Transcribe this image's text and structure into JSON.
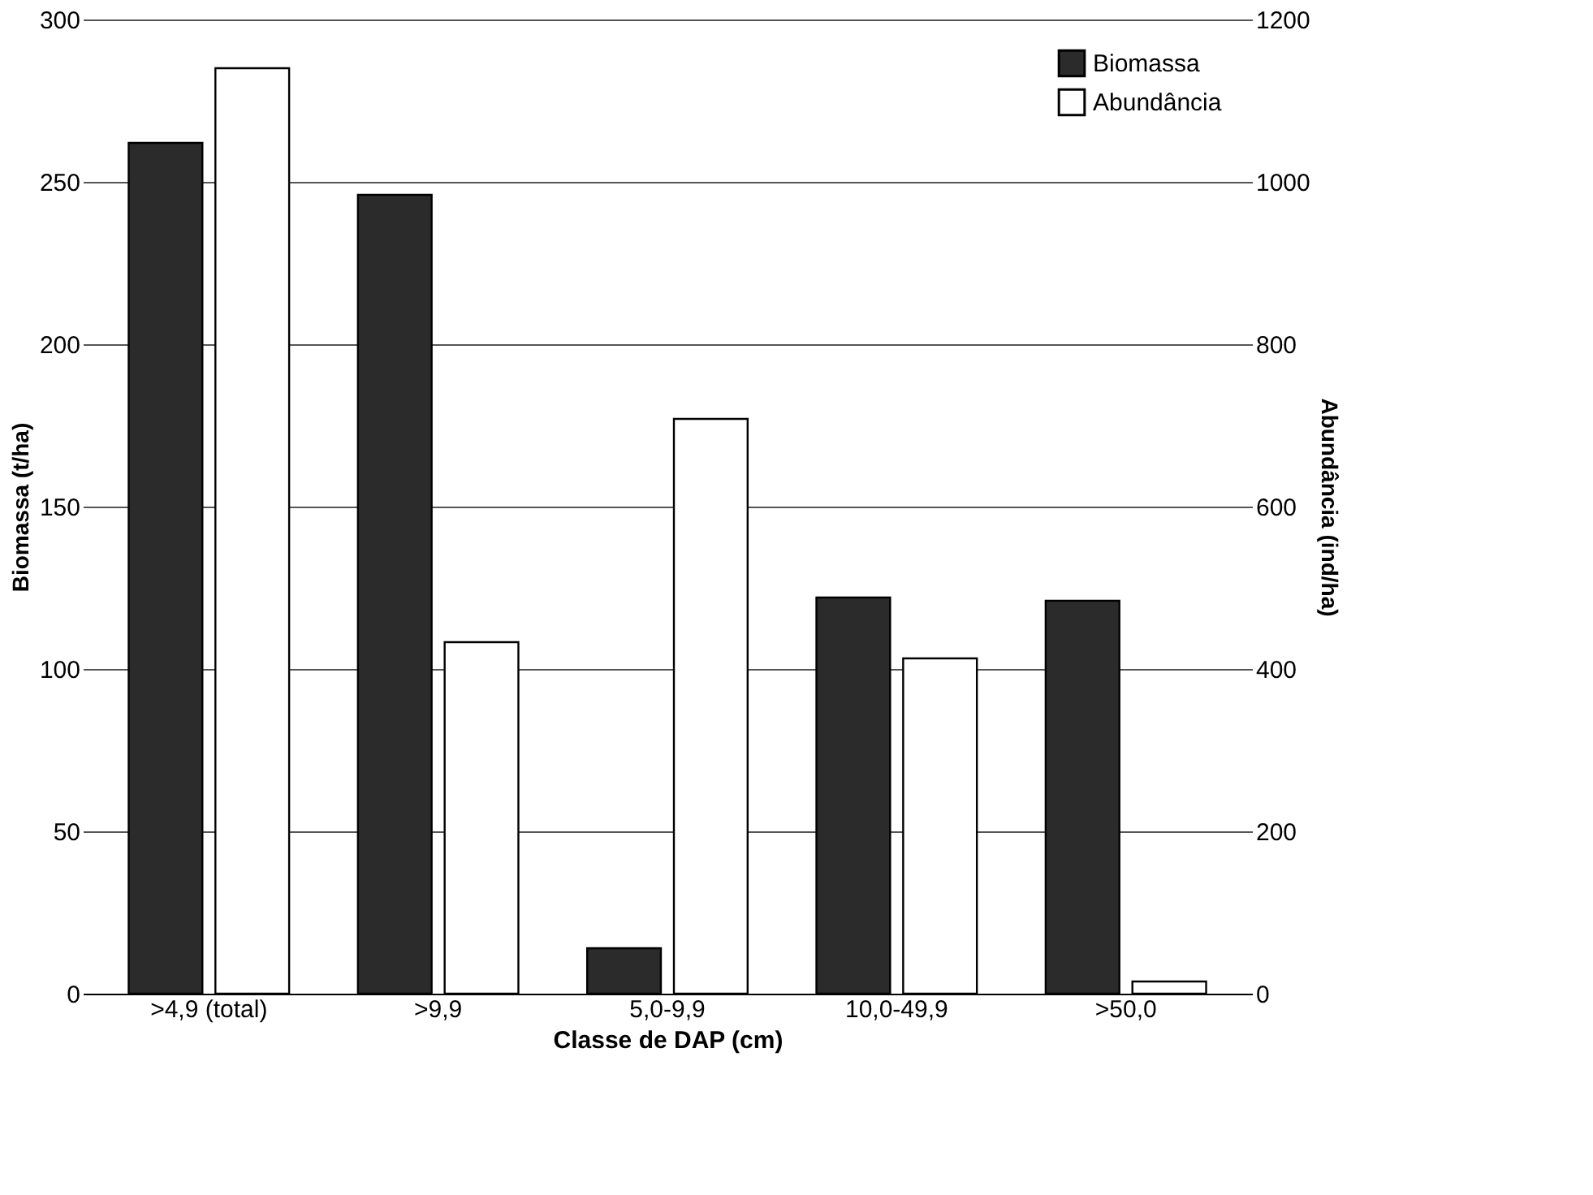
{
  "chart_data": {
    "type": "bar",
    "categories": [
      ">4,9 (total)",
      ">9,9",
      "5,0-9,9",
      "10,0-49,9",
      ">50,0"
    ],
    "xlabel": "Classe de DAP (cm)",
    "ylabel": "Biomassa (t/ha)",
    "y2label": "Abundância (ind/ha)",
    "series": [
      {
        "name": "Biomassa",
        "color": "#2b2b2b",
        "values": [
          262,
          246,
          14,
          122,
          121
        ]
      },
      {
        "name": "Abundância",
        "color": "#ffffff",
        "axis": "y2",
        "values": [
          1140,
          433,
          708,
          413,
          15
        ]
      }
    ],
    "ylim": [
      0,
      300
    ],
    "yticks": [
      0,
      50,
      100,
      150,
      200,
      250,
      300
    ],
    "y2lim": [
      0,
      1200
    ],
    "y2ticks": [
      0,
      200,
      400,
      600,
      800,
      1000,
      1200
    ],
    "grid": "y",
    "legend": "top right"
  }
}
